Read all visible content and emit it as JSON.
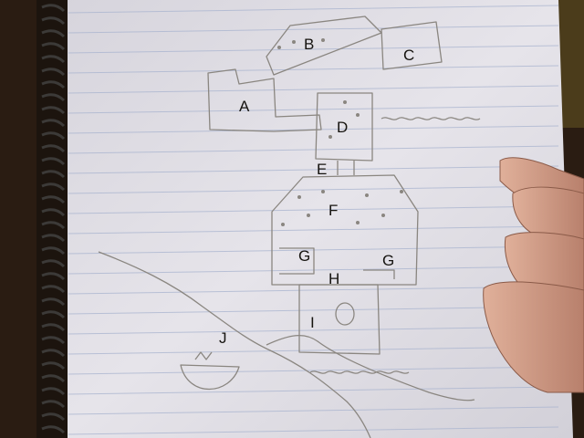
{
  "photo": {
    "subject": "hand-drawn-dungeon-map",
    "colors": {
      "background": "#2a1c12",
      "paper": "#e4e2e8",
      "rule_line": "#a9b4cf",
      "pencil": "#8a8680",
      "ink": "#15130f",
      "hand": "#d4a088"
    }
  },
  "map": {
    "rooms": {
      "a": "A",
      "b": "B",
      "c": "C",
      "d": "D",
      "e": "E",
      "f": "F",
      "g_left": "G",
      "g_right": "G",
      "h": "H",
      "i": "I",
      "j": "J"
    }
  }
}
